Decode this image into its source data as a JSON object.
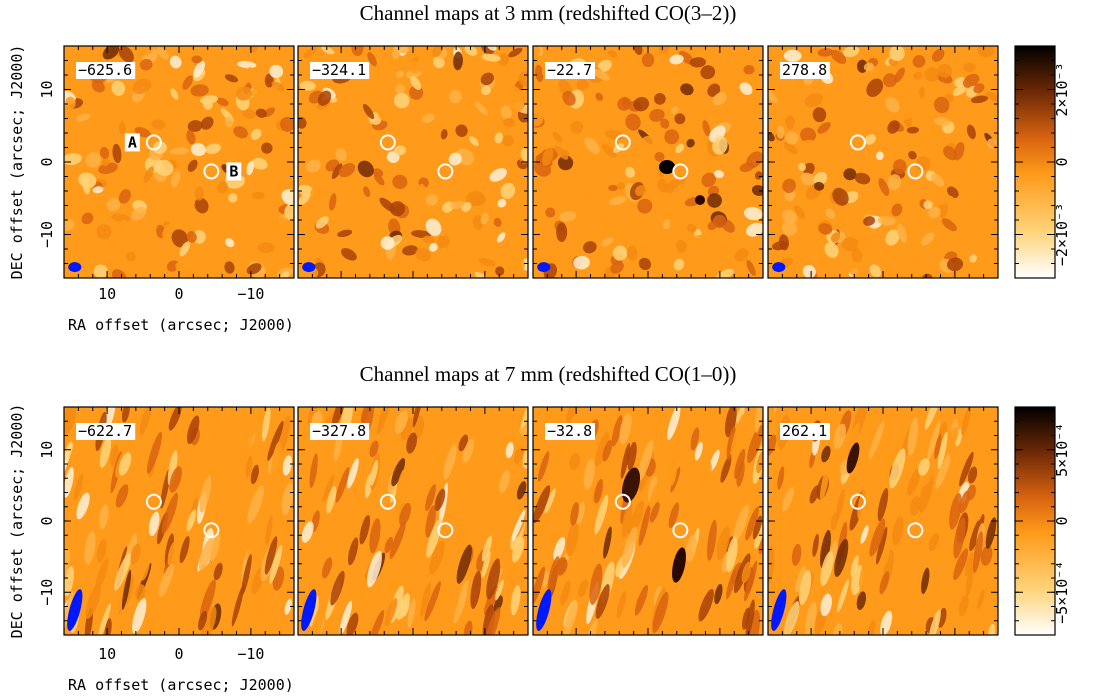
{
  "chart_data": [
    {
      "type": "heatmap",
      "title": "Channel maps at 3 mm (redshifted CO(3–2))",
      "xlabel": "RA offset (arcsec; J2000)",
      "ylabel": "DEC offset (arcsec; J2000)",
      "xlim": [
        16,
        -16
      ],
      "ylim": [
        -16,
        16
      ],
      "x_ticks": [
        10,
        0,
        -10
      ],
      "y_ticks": [
        10,
        0,
        -10
      ],
      "x_tick_labels": [
        "10",
        "0",
        "−10"
      ],
      "y_tick_labels": [
        "10",
        "0",
        "−10"
      ],
      "channels": [
        {
          "label": "−625.6",
          "velocity": -625.6
        },
        {
          "label": "−324.1",
          "velocity": -324.1
        },
        {
          "label": "−22.7",
          "velocity": -22.7
        },
        {
          "label": "278.8",
          "velocity": 278.8
        }
      ],
      "sources": [
        {
          "name": "A",
          "x": 3.5,
          "y": 2.7
        },
        {
          "name": "B",
          "x": -4.5,
          "y": -1.3
        }
      ],
      "beam": {
        "major_arcsec": 2.0,
        "minor_arcsec": 1.3,
        "pa_deg": 90,
        "x": 14.5,
        "y": -14.5,
        "color": "#0018ff"
      },
      "colorbar": {
        "range": [
          -0.0032,
          0.0032
        ],
        "ticks": [
          0.002,
          0,
          -0.002
        ],
        "tick_labels": [
          "2×10⁻³",
          "0",
          "−2×10⁻³"
        ]
      }
    },
    {
      "type": "heatmap",
      "title": "Channel maps at 7 mm (redshifted CO(1–0))",
      "xlabel": "RA offset (arcsec; J2000)",
      "ylabel": "DEC offset (arcsec; J2000)",
      "xlim": [
        16,
        -16
      ],
      "ylim": [
        -16,
        16
      ],
      "x_ticks": [
        10,
        0,
        -10
      ],
      "y_ticks": [
        10,
        0,
        -10
      ],
      "x_tick_labels": [
        "10",
        "0",
        "−10"
      ],
      "y_tick_labels": [
        "10",
        "0",
        "−10"
      ],
      "channels": [
        {
          "label": "−622.7",
          "velocity": -622.7
        },
        {
          "label": "−327.8",
          "velocity": -327.8
        },
        {
          "label": "−32.8",
          "velocity": -32.8
        },
        {
          "label": "262.1",
          "velocity": 262.1
        }
      ],
      "sources": [
        {
          "name": "",
          "x": 3.5,
          "y": 2.7
        },
        {
          "name": "",
          "x": -4.5,
          "y": -1.3
        }
      ],
      "beam": {
        "major_arcsec": 6.0,
        "minor_arcsec": 1.5,
        "pa_deg": 15,
        "x": 14.5,
        "y": -12.5,
        "color": "#0018ff"
      },
      "colorbar": {
        "range": [
          -0.0008,
          0.0008
        ],
        "ticks": [
          0.0005,
          0,
          -0.0005
        ],
        "tick_labels": [
          "5×10⁻⁴",
          "0",
          "−5×10⁻⁴"
        ]
      }
    }
  ]
}
